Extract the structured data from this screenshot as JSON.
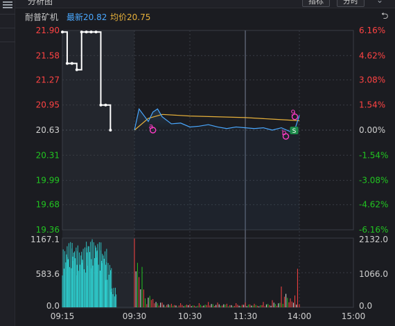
{
  "window": {
    "title": "分析图",
    "indicator_button": "指标",
    "period_button": "分时"
  },
  "icons": {
    "undo": "undo-icon",
    "menu": "hamburger-icon",
    "dropdown": "chevron-down-icon"
  },
  "header": {
    "stock_name": "耐普矿机",
    "latest_label": "最新20.82",
    "avg_label": "均价20.75"
  },
  "colors": {
    "up": "#ff4343",
    "down": "#21c521",
    "price_line": "#4aa8ff",
    "avg_line": "#e8b13a",
    "grid": "#3a3d45",
    "background": "#1b1c21"
  },
  "chart_data": {
    "type": "line",
    "prev_close": 20.63,
    "price_axis": {
      "ticks": [
        21.9,
        21.58,
        21.27,
        20.95,
        20.63,
        20.31,
        19.99,
        19.68,
        19.36
      ],
      "labels": [
        "21.90",
        "21.58",
        "21.27",
        "20.95",
        "20.63",
        "20.31",
        "19.99",
        "19.68",
        "19.36"
      ]
    },
    "pct_axis": {
      "labels": [
        "6.16%",
        "4.62%",
        "3.08%",
        "1.54%",
        "0.00%",
        "-1.54%",
        "-3.08%",
        "-4.62%",
        "-6.16%"
      ]
    },
    "time_axis": {
      "labels": [
        "09:15",
        "09:30",
        "10:30",
        "11:30",
        "14:00",
        "15:00"
      ]
    },
    "volume_axis": {
      "left_labels": [
        "1167.1",
        "583.6",
        "0.0"
      ],
      "right_labels": [
        "2132.0",
        "1066.0",
        "0.0"
      ],
      "max": 1167.1
    },
    "auction": {
      "x": [
        "09:15",
        "09:16",
        "09:17",
        "09:18",
        "09:19",
        "09:20",
        "09:21",
        "09:22",
        "09:23",
        "09:24",
        "09:25"
      ],
      "price": [
        21.88,
        21.48,
        21.48,
        21.4,
        21.88,
        21.88,
        21.88,
        21.88,
        20.95,
        20.95,
        20.63
      ],
      "volume": [
        980,
        1100,
        1050,
        950,
        1010,
        1160,
        1120,
        1100,
        1000,
        760,
        330
      ]
    },
    "series": [
      {
        "name": "最新",
        "x": [
          "09:30",
          "09:35",
          "09:40",
          "09:45",
          "09:50",
          "09:55",
          "10:00",
          "10:10",
          "10:20",
          "10:30",
          "10:40",
          "10:50",
          "11:00",
          "11:10",
          "11:20",
          "11:30",
          "13:10",
          "13:20",
          "13:30",
          "13:40",
          "13:50",
          "13:55",
          "14:00"
        ],
        "values": [
          20.63,
          20.9,
          20.82,
          20.74,
          20.86,
          20.9,
          20.8,
          20.71,
          20.72,
          20.67,
          20.68,
          20.7,
          20.67,
          20.65,
          20.67,
          20.66,
          20.65,
          20.66,
          20.63,
          20.66,
          20.61,
          20.64,
          20.82
        ]
      },
      {
        "name": "均价",
        "x": [
          "09:30",
          "09:45",
          "10:00",
          "10:30",
          "11:00",
          "11:30",
          "13:30",
          "14:00"
        ],
        "values": [
          20.63,
          20.78,
          20.83,
          20.81,
          20.8,
          20.79,
          20.77,
          20.75
        ]
      }
    ],
    "volume": {
      "x": [
        "09:30",
        "09:40",
        "09:50",
        "10:00",
        "10:10",
        "10:20",
        "10:30",
        "10:40",
        "10:50",
        "11:00",
        "11:10",
        "11:20",
        "11:30",
        "13:10",
        "13:20",
        "13:30",
        "13:40",
        "13:50",
        "13:55",
        "13:58",
        "14:00"
      ],
      "values": [
        1160,
        300,
        140,
        80,
        60,
        70,
        50,
        70,
        90,
        80,
        60,
        70,
        80,
        60,
        90,
        120,
        350,
        150,
        200,
        650,
        50
      ]
    },
    "annotations": [
      {
        "time": "09:50",
        "price": 20.63,
        "label": "a"
      },
      {
        "time": "13:45",
        "price": 20.55,
        "label": "b"
      },
      {
        "time": "13:55",
        "price": 20.8,
        "label": "9"
      }
    ]
  }
}
